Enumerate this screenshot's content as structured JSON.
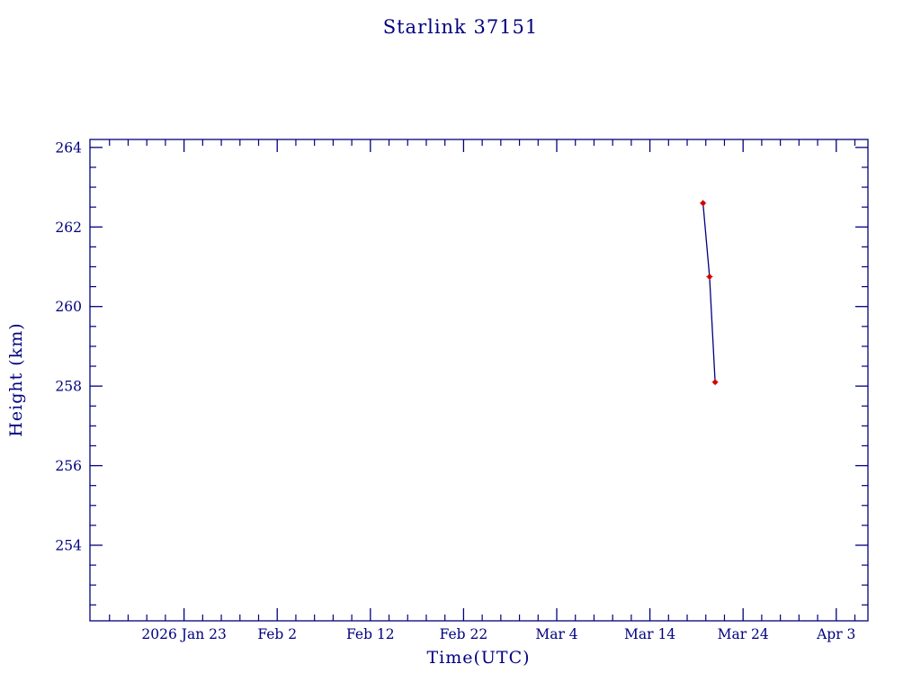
{
  "page_title": "Starlink 37151",
  "chart_data": {
    "type": "line",
    "title": "Starlink 37151",
    "xlabel": "Time(UTC)",
    "ylabel": "Height (km)",
    "axis_color": "#000080",
    "line_color": "#000080",
    "marker_color": "#d40000",
    "x_axis_unit": "days since 2026 Jan 23",
    "xlim_days": [
      -10.1,
      73.4
    ],
    "ylim": [
      252.1,
      264.2
    ],
    "x_tick_step_days": 10,
    "x_minor_tick_step_days": 2,
    "y_minor_tick_step": 0.5,
    "x_ticks": [
      {
        "day": 0,
        "label": "2026 Jan 23"
      },
      {
        "day": 10,
        "label": "Feb  2"
      },
      {
        "day": 20,
        "label": "Feb 12"
      },
      {
        "day": 30,
        "label": "Feb 22"
      },
      {
        "day": 40,
        "label": "Mar  4"
      },
      {
        "day": 50,
        "label": "Mar 14"
      },
      {
        "day": 60,
        "label": "Mar 24"
      },
      {
        "day": 70,
        "label": "Apr  3"
      }
    ],
    "y_ticks": [
      254,
      256,
      258,
      260,
      262,
      264
    ],
    "grid": false,
    "legend": false,
    "series": [
      {
        "name": "height",
        "points": [
          {
            "day": 55.7,
            "date_approx": "2026 Mar 19",
            "height": 262.6
          },
          {
            "day": 56.4,
            "date_approx": "2026 Mar 20",
            "height": 260.75
          },
          {
            "day": 57.0,
            "date_approx": "2026 Mar 21",
            "height": 258.1
          }
        ]
      }
    ]
  }
}
